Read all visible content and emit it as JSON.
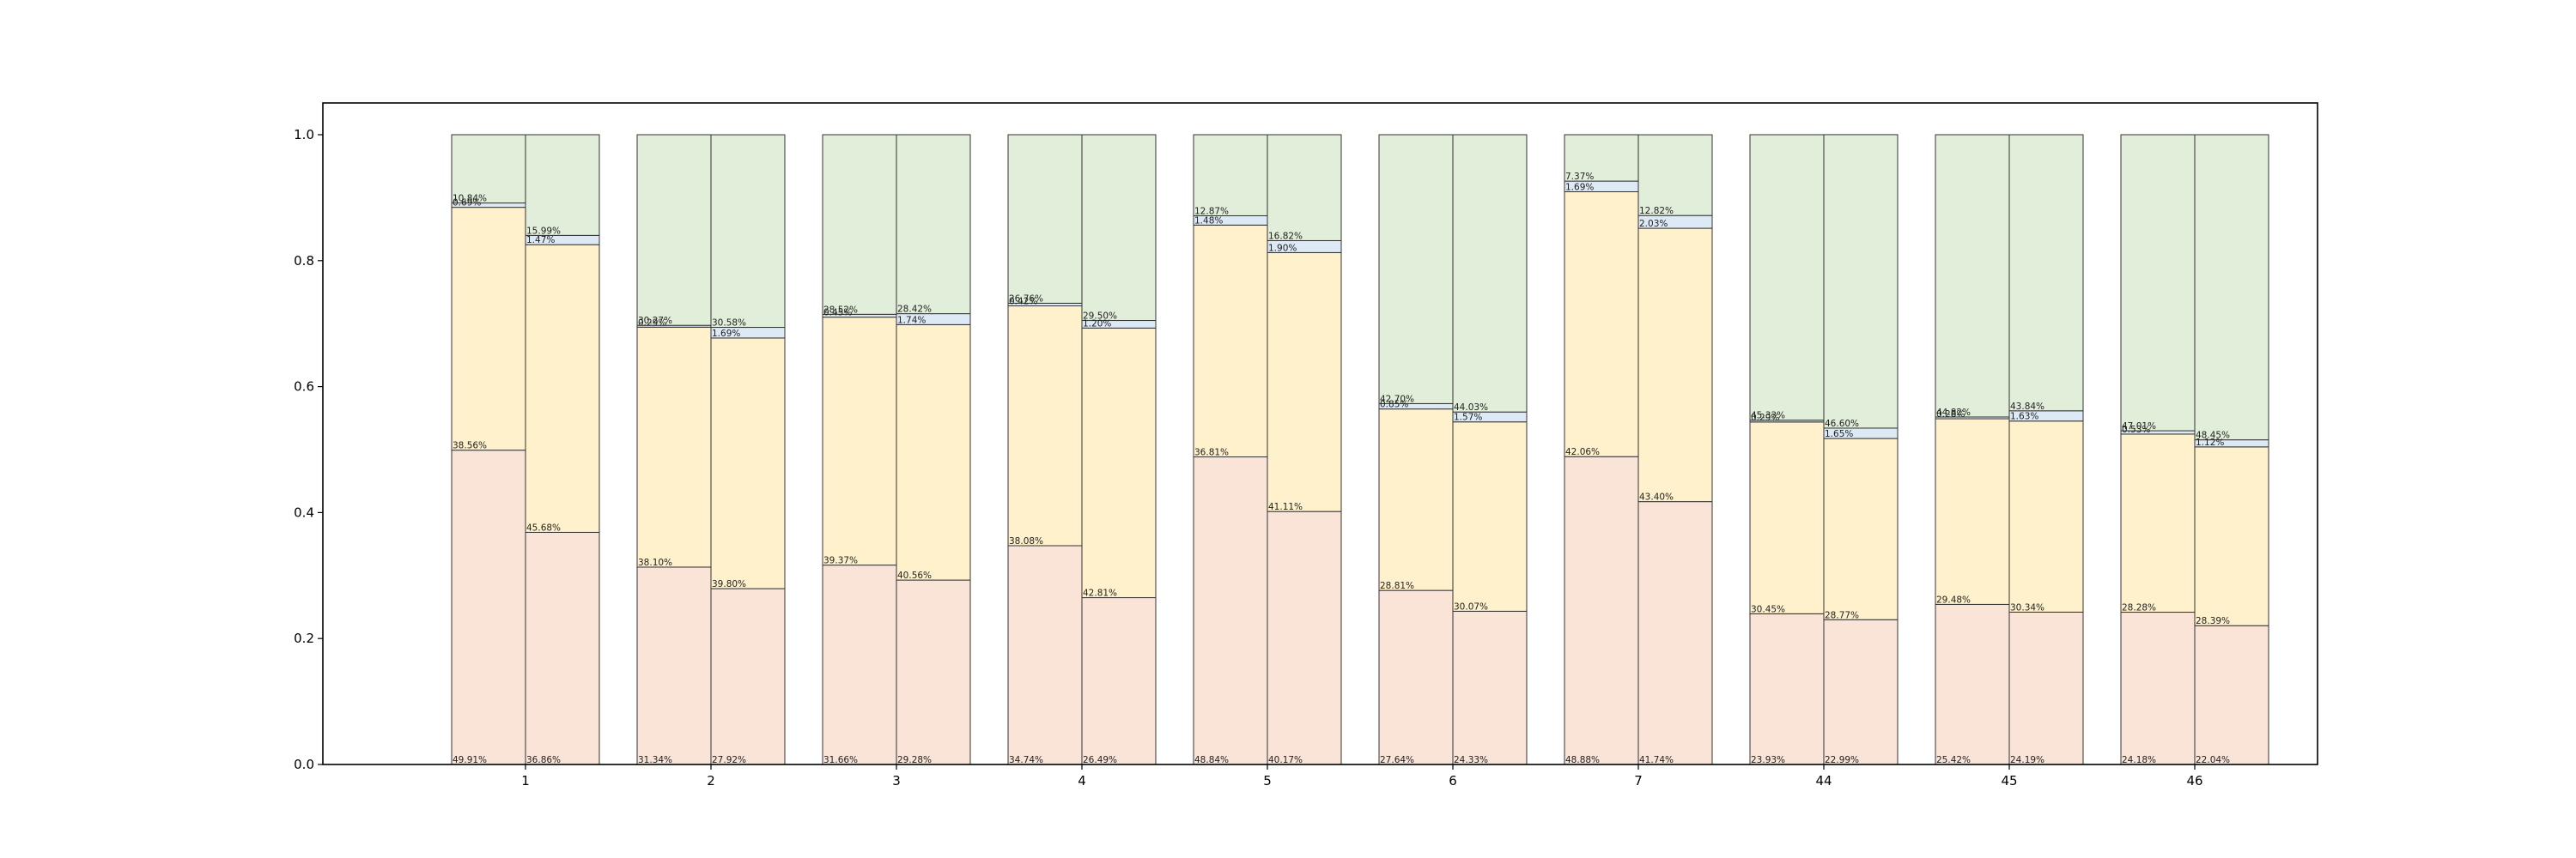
{
  "chart_data": {
    "type": "bar",
    "stacked": true,
    "normalized": true,
    "title": "",
    "xlabel": "",
    "ylabel": "",
    "ylim": [
      0,
      1.05
    ],
    "yticks": [
      "0.0",
      "0.2",
      "0.4",
      "0.6",
      "0.8",
      "1.0"
    ],
    "grid": false,
    "categories": [
      "1",
      "2",
      "3",
      "4",
      "5",
      "6",
      "7",
      "44",
      "45",
      "46"
    ],
    "segment_colors": [
      "#fae4d7",
      "#fff1cc",
      "#dde9f5",
      "#e1eed9"
    ],
    "bars_per_category": 2,
    "series": [
      {
        "name": "bar-left",
        "segments": [
          {
            "name": "segment-1",
            "values": [
              49.91,
              31.34,
              31.66,
              34.74,
              48.84,
              27.64,
              48.88,
              23.93,
              25.42,
              24.18
            ],
            "labels": [
              "49.91%",
              "31.34%",
              "31.66%",
              "34.74%",
              "48.84%",
              "27.64%",
              "48.88%",
              "23.93%",
              "25.42%",
              "24.18%"
            ]
          },
          {
            "name": "segment-2",
            "values": [
              38.56,
              38.1,
              39.37,
              38.08,
              36.81,
              28.81,
              42.06,
              30.45,
              29.48,
              28.28
            ],
            "labels": [
              "38.56%",
              "38.10%",
              "39.37%",
              "38.08%",
              "36.81%",
              "28.81%",
              "42.06%",
              "30.45%",
              "29.48%",
              "28.28%"
            ]
          },
          {
            "name": "segment-3",
            "values": [
              0.69,
              0.29,
              0.45,
              0.42,
              1.48,
              0.85,
              1.69,
              0.29,
              0.28,
              0.53
            ],
            "labels": [
              "0.69%",
              "0.29%",
              "0.45%",
              "0.42%",
              "1.48%",
              "0.85%",
              "1.69%",
              "0.29%",
              "0.28%",
              "0.53%"
            ]
          },
          {
            "name": "segment-4",
            "values": [
              10.84,
              30.27,
              28.52,
              26.76,
              12.87,
              42.7,
              7.37,
              45.33,
              44.82,
              47.01
            ],
            "labels": [
              "10.84%",
              "30.27%",
              "28.52%",
              "26.76%",
              "12.87%",
              "42.70%",
              "7.37%",
              "45.33%",
              "44.82%",
              "47.01%"
            ]
          }
        ]
      },
      {
        "name": "bar-right",
        "segments": [
          {
            "name": "segment-1",
            "values": [
              36.86,
              27.92,
              29.28,
              26.49,
              40.17,
              24.33,
              41.74,
              22.99,
              24.19,
              22.04
            ],
            "labels": [
              "36.86%",
              "27.92%",
              "29.28%",
              "26.49%",
              "40.17%",
              "24.33%",
              "41.74%",
              "22.99%",
              "24.19%",
              "22.04%"
            ]
          },
          {
            "name": "segment-2",
            "values": [
              45.68,
              39.8,
              40.56,
              42.81,
              41.11,
              30.07,
              43.4,
              28.77,
              30.34,
              28.39
            ],
            "labels": [
              "45.68%",
              "39.80%",
              "40.56%",
              "42.81%",
              "41.11%",
              "30.07%",
              "43.40%",
              "28.77%",
              "30.34%",
              "28.39%"
            ]
          },
          {
            "name": "segment-3",
            "values": [
              1.47,
              1.69,
              1.74,
              1.2,
              1.9,
              1.57,
              2.03,
              1.65,
              1.63,
              1.12
            ],
            "labels": [
              "1.47%",
              "1.69%",
              "1.74%",
              "1.20%",
              "1.90%",
              "1.57%",
              "2.03%",
              "1.65%",
              "1.63%",
              "1.12%"
            ]
          },
          {
            "name": "segment-4",
            "values": [
              15.99,
              30.58,
              28.42,
              29.5,
              16.82,
              44.03,
              12.82,
              46.6,
              43.84,
              48.45
            ],
            "labels": [
              "15.99%",
              "30.58%",
              "28.42%",
              "29.50%",
              "16.82%",
              "44.03%",
              "12.82%",
              "46.60%",
              "43.84%",
              "48.45%"
            ]
          }
        ]
      }
    ]
  }
}
